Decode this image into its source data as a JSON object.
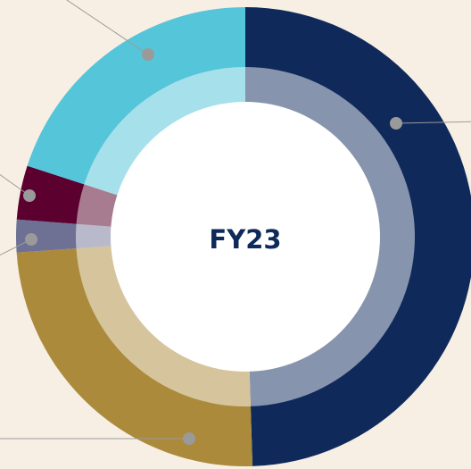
{
  "chart_data": {
    "type": "donut",
    "title": "FY23",
    "categories": [
      null,
      null,
      null,
      null,
      null
    ],
    "values": [
      49.5,
      24.4,
      2.3,
      3.8,
      20
    ],
    "colors": [
      "#0f2a5a",
      "#ab8a3c",
      "#6e7193",
      "#5c0030",
      "#55c5da"
    ],
    "inner_colors": [
      "#8794ad",
      "#d6c49c",
      "#b8bacb",
      "#a87c90",
      "#a6e0eb"
    ]
  }
}
